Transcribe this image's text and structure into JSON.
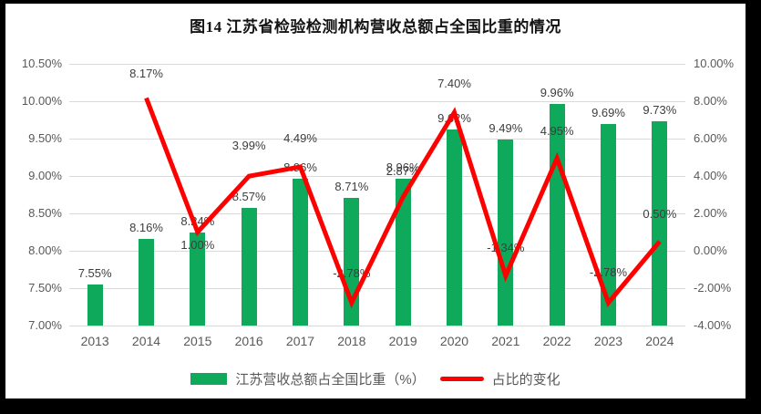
{
  "window": {
    "frame_color": "#000000",
    "canvas_color": "#ffffff"
  },
  "chart_data": {
    "type": "combo-bar-line",
    "title": "图14 江苏省检验检测机构营收总额占全国比重的情况",
    "categories": [
      "2013",
      "2014",
      "2015",
      "2016",
      "2017",
      "2018",
      "2019",
      "2020",
      "2021",
      "2022",
      "2023",
      "2024"
    ],
    "series": [
      {
        "name": "江苏营收总额占全国比重（%）",
        "type": "bar",
        "axis": "left",
        "color": "#0EA95A",
        "values": [
          7.55,
          8.16,
          8.24,
          8.57,
          8.96,
          8.71,
          8.96,
          9.62,
          9.49,
          9.96,
          9.69,
          9.73
        ],
        "labels": [
          "7.55%",
          "8.16%",
          "8.24%",
          "8.57%",
          "8.96%",
          "8.71%",
          "8.96%",
          "9.62%",
          "9.49%",
          "9.96%",
          "9.69%",
          "9.73%"
        ]
      },
      {
        "name": "占比的变化",
        "type": "line",
        "axis": "right",
        "color": "#FE0000",
        "values": [
          null,
          8.17,
          1.0,
          3.99,
          4.49,
          -2.78,
          2.87,
          7.4,
          -1.34,
          4.95,
          -2.78,
          0.5
        ],
        "labels": [
          null,
          "8.17%",
          "1.00%",
          "3.99%",
          "4.49%",
          "-2.78%",
          "2.87%",
          "7.40%",
          "-1.34%",
          "4.95%",
          "-2.78%",
          "0.50%"
        ]
      }
    ],
    "left_axis": {
      "min": 7.0,
      "max": 10.5,
      "step": 0.5,
      "ticks": [
        "10.50%",
        "10.00%",
        "9.50%",
        "9.00%",
        "8.50%",
        "8.00%",
        "7.50%",
        "7.00%"
      ]
    },
    "right_axis": {
      "min": -4.0,
      "max": 10.0,
      "step": 2.0,
      "ticks": [
        "10.00%",
        "8.00%",
        "6.00%",
        "4.00%",
        "2.00%",
        "0.00%",
        "-2.00%",
        "-4.00%"
      ]
    },
    "grid": true,
    "legend_position": "bottom",
    "layout_hints": {
      "line_label_dy": [
        null,
        -27,
        14,
        -33,
        -31,
        -32,
        -28,
        -31,
        -30,
        -30,
        -33,
        -30
      ],
      "bar_label_dy": -20
    }
  }
}
